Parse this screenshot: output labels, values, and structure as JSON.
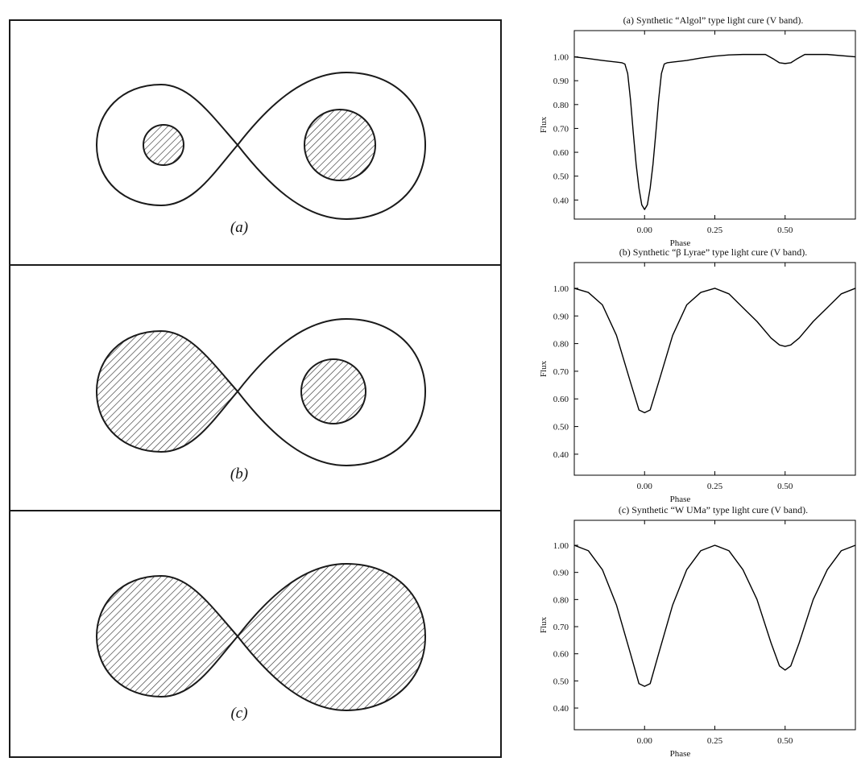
{
  "diagram": {
    "panels": [
      {
        "label": "(a)"
      },
      {
        "label": "(b)"
      },
      {
        "label": "(c)"
      }
    ]
  },
  "chart_data": [
    {
      "type": "line",
      "title": "(a) Synthetic “Algol” type light cure (V band).",
      "xlabel": "Phase",
      "ylabel": "Flux",
      "color": "#000000",
      "x": [
        -0.25,
        -0.2,
        -0.15,
        -0.1,
        -0.08,
        -0.07,
        -0.06,
        -0.05,
        -0.04,
        -0.03,
        -0.02,
        -0.01,
        0,
        0.01,
        0.02,
        0.03,
        0.04,
        0.05,
        0.06,
        0.07,
        0.08,
        0.1,
        0.15,
        0.2,
        0.25,
        0.3,
        0.35,
        0.43,
        0.46,
        0.48,
        0.5,
        0.52,
        0.54,
        0.57,
        0.65,
        0.75
      ],
      "values": [
        1.0,
        0.993,
        0.985,
        0.978,
        0.975,
        0.97,
        0.93,
        0.82,
        0.68,
        0.55,
        0.45,
        0.38,
        0.36,
        0.38,
        0.45,
        0.55,
        0.68,
        0.82,
        0.93,
        0.97,
        0.975,
        0.978,
        0.985,
        0.995,
        1.003,
        1.008,
        1.01,
        1.01,
        0.99,
        0.975,
        0.972,
        0.975,
        0.99,
        1.01,
        1.01,
        1.0
      ],
      "xlim": [
        -0.25,
        0.75
      ],
      "ylim": [
        0.32,
        1.11
      ],
      "xticks": [
        {
          "value": 0,
          "label": "0.00"
        },
        {
          "value": 0.25,
          "label": "0.25"
        },
        {
          "value": 0.5,
          "label": "0.50"
        }
      ],
      "yticks": [
        {
          "value": 0.4,
          "label": "0.40"
        },
        {
          "value": 0.5,
          "label": "0.50"
        },
        {
          "value": 0.6,
          "label": "0.60"
        },
        {
          "value": 0.7,
          "label": "0.70"
        },
        {
          "value": 0.8,
          "label": "0.80"
        },
        {
          "value": 0.9,
          "label": "0.90"
        },
        {
          "value": 1,
          "label": "1.00"
        }
      ]
    },
    {
      "type": "line",
      "title": "(b) Synthetic “β Lyrae” type light cure (V band).",
      "xlabel": "Phase",
      "ylabel": "Flux",
      "color": "#000000",
      "x": [
        -0.25,
        -0.2,
        -0.15,
        -0.1,
        -0.05,
        -0.02,
        0,
        0.02,
        0.05,
        0.1,
        0.15,
        0.2,
        0.25,
        0.3,
        0.35,
        0.4,
        0.45,
        0.48,
        0.5,
        0.52,
        0.55,
        0.6,
        0.65,
        0.7,
        0.75
      ],
      "values": [
        1.0,
        0.985,
        0.94,
        0.83,
        0.66,
        0.56,
        0.55,
        0.56,
        0.66,
        0.83,
        0.94,
        0.985,
        1.0,
        0.98,
        0.93,
        0.88,
        0.82,
        0.795,
        0.79,
        0.795,
        0.82,
        0.88,
        0.93,
        0.98,
        1.0
      ],
      "xlim": [
        -0.25,
        0.75
      ],
      "ylim": [
        0.324,
        1.093
      ],
      "xticks": [
        {
          "value": 0,
          "label": "0.00"
        },
        {
          "value": 0.25,
          "label": "0.25"
        },
        {
          "value": 0.5,
          "label": "0.50"
        }
      ],
      "yticks": [
        {
          "value": 0.4,
          "label": "0.40"
        },
        {
          "value": 0.5,
          "label": "0.50"
        },
        {
          "value": 0.6,
          "label": "0.60"
        },
        {
          "value": 0.7,
          "label": "0.70"
        },
        {
          "value": 0.8,
          "label": "0.80"
        },
        {
          "value": 0.9,
          "label": "0.90"
        },
        {
          "value": 1,
          "label": "1.00"
        }
      ]
    },
    {
      "type": "line",
      "title": "(c) Synthetic “W UMa” type light cure (V band).",
      "xlabel": "Phase",
      "ylabel": "Flux",
      "color": "#000000",
      "x": [
        -0.25,
        -0.2,
        -0.15,
        -0.1,
        -0.05,
        -0.02,
        0,
        0.02,
        0.05,
        0.1,
        0.15,
        0.2,
        0.25,
        0.3,
        0.35,
        0.4,
        0.45,
        0.48,
        0.5,
        0.52,
        0.55,
        0.6,
        0.65,
        0.7,
        0.75
      ],
      "values": [
        1.0,
        0.98,
        0.91,
        0.78,
        0.6,
        0.49,
        0.48,
        0.49,
        0.6,
        0.78,
        0.91,
        0.98,
        1.0,
        0.98,
        0.91,
        0.8,
        0.64,
        0.555,
        0.54,
        0.555,
        0.64,
        0.8,
        0.91,
        0.98,
        1.0
      ],
      "xlim": [
        -0.25,
        0.75
      ],
      "ylim": [
        0.32,
        1.092
      ],
      "xticks": [
        {
          "value": 0,
          "label": "0.00"
        },
        {
          "value": 0.25,
          "label": "0.25"
        },
        {
          "value": 0.5,
          "label": "0.50"
        }
      ],
      "yticks": [
        {
          "value": 0.4,
          "label": "0.40"
        },
        {
          "value": 0.5,
          "label": "0.50"
        },
        {
          "value": 0.6,
          "label": "0.60"
        },
        {
          "value": 0.7,
          "label": "0.70"
        },
        {
          "value": 0.8,
          "label": "0.80"
        },
        {
          "value": 0.9,
          "label": "0.90"
        },
        {
          "value": 1,
          "label": "1.00"
        }
      ]
    }
  ]
}
